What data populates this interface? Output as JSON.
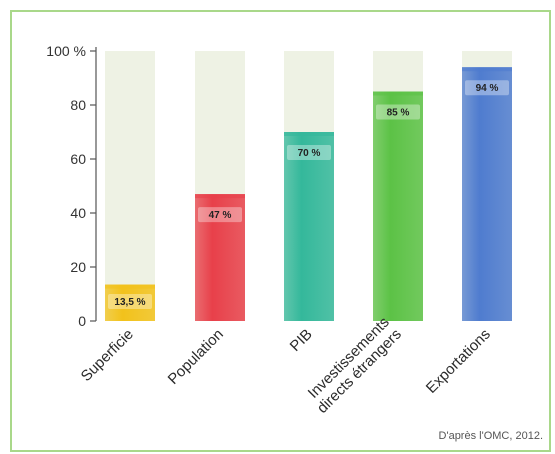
{
  "chart_data": {
    "type": "bar",
    "categories": [
      [
        "Superficie"
      ],
      [
        "Population"
      ],
      [
        "PIB"
      ],
      [
        "Investissements",
        "directs étrangers"
      ],
      [
        "Exportations"
      ]
    ],
    "values": [
      13.5,
      47,
      70,
      85,
      94
    ],
    "data_labels": [
      "13,5 %",
      "47 %",
      "70 %",
      "85 %",
      "94 %"
    ],
    "y_ticks": [
      {
        "value": 0,
        "label": "0"
      },
      {
        "value": 20,
        "label": "20"
      },
      {
        "value": 40,
        "label": "40"
      },
      {
        "value": 60,
        "label": "60"
      },
      {
        "value": 80,
        "label": "80"
      },
      {
        "value": 100,
        "label": "100 %"
      }
    ],
    "ylim": [
      0,
      100
    ],
    "bar_colors": [
      "#f2c21b",
      "#e8404a",
      "#34b89b",
      "#5cc246",
      "#4f7ccf"
    ],
    "background_bar_color": "#eef2e4",
    "grid": false,
    "title": "",
    "xlabel": "",
    "ylabel": ""
  },
  "source_note": "D'après l'OMC, 2012."
}
